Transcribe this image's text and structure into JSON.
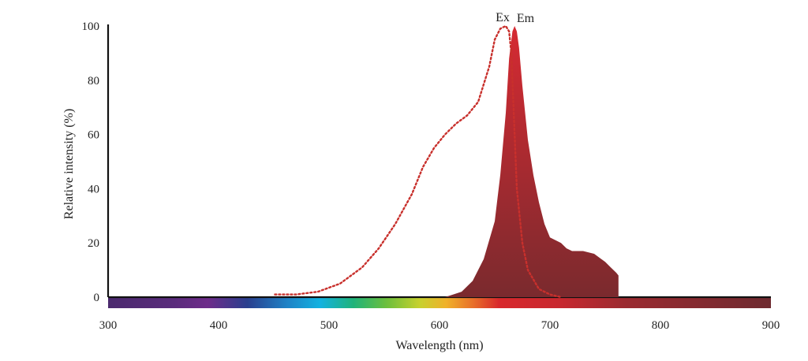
{
  "colors": {
    "excitation": "#c8302c",
    "emission_top": "#d62a32",
    "emission_bottom": "#7a2a2e",
    "axis": "#111111"
  },
  "chart_data": {
    "type": "area",
    "title": "",
    "xlabel": "Wavelength (nm)",
    "ylabel": "Relative intensity (%)",
    "xlim": [
      300,
      900
    ],
    "ylim": [
      0,
      100
    ],
    "x_ticks": [
      "300",
      "400",
      "500",
      "600",
      "700",
      "800",
      "900"
    ],
    "y_ticks": [
      "0",
      "20",
      "40",
      "60",
      "80",
      "100"
    ],
    "grid": false,
    "legend": "none",
    "spectrum_bar": true,
    "series": [
      {
        "name": "Ex",
        "style": "dotted-line",
        "x": [
          451,
          455,
          470,
          490,
          510,
          530,
          545,
          560,
          575,
          585,
          595,
          605,
          615,
          625,
          635,
          645,
          650,
          655,
          660,
          663,
          665,
          668,
          670,
          675,
          680,
          690,
          700,
          710
        ],
        "y": [
          1,
          1,
          1,
          2,
          5,
          11,
          18,
          27,
          38,
          48,
          55,
          60,
          64,
          67,
          72,
          85,
          95,
          99,
          100,
          98,
          90,
          60,
          40,
          20,
          10,
          3,
          1,
          0
        ]
      },
      {
        "name": "Em",
        "style": "filled-area",
        "x": [
          605,
          620,
          630,
          640,
          650,
          655,
          660,
          663,
          666,
          668,
          670,
          672,
          675,
          680,
          685,
          690,
          695,
          700,
          705,
          710,
          715,
          720,
          725,
          730,
          740,
          750,
          755,
          760,
          762
        ],
        "y": [
          0,
          2,
          6,
          14,
          28,
          45,
          68,
          88,
          98,
          100,
          98,
          92,
          78,
          58,
          45,
          35,
          27,
          22,
          21,
          20,
          18,
          17,
          17,
          17,
          16,
          13,
          11,
          9,
          8
        ]
      }
    ]
  }
}
